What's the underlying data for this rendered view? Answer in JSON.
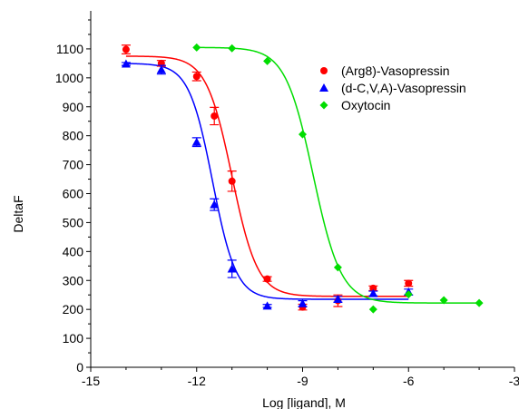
{
  "chart_data": {
    "type": "scatter",
    "title": "",
    "xlabel": "Log [ligand], M",
    "ylabel": "DeltaF",
    "xlim": [
      -15,
      -3
    ],
    "ylim": [
      0,
      1200
    ],
    "xticks": [
      -15,
      -12,
      -9,
      -6,
      -3
    ],
    "xtick_labels": [
      "-15",
      "-12",
      "-9",
      "-6",
      "-3"
    ],
    "yticks": [
      0,
      100,
      200,
      300,
      400,
      500,
      600,
      700,
      800,
      900,
      1000,
      1100
    ],
    "ytick_labels": [
      "0",
      "100",
      "200",
      "300",
      "400",
      "500",
      "600",
      "700",
      "800",
      "900",
      "1000",
      "1100"
    ],
    "grid": false,
    "legend_position": "top-right",
    "series": [
      {
        "name": "(Arg8)-Vasopressin",
        "color": "#ff0000",
        "marker": "circle",
        "points": [
          {
            "x": -14,
            "y": 1098,
            "err": 15
          },
          {
            "x": -13,
            "y": 1050,
            "err": 10
          },
          {
            "x": -12,
            "y": 1005,
            "err": 15
          },
          {
            "x": -11.5,
            "y": 868,
            "err": 30
          },
          {
            "x": -11,
            "y": 643,
            "err": 35
          },
          {
            "x": -10,
            "y": 305,
            "err": 8
          },
          {
            "x": -9,
            "y": 208,
            "err": 10
          },
          {
            "x": -8,
            "y": 230,
            "err": 20
          },
          {
            "x": -7,
            "y": 273,
            "err": 8
          },
          {
            "x": -6,
            "y": 290,
            "err": 10
          }
        ],
        "curve": {
          "top": 1075,
          "bottom": 245,
          "logec50": -11.0,
          "hill": 1.2
        }
      },
      {
        "name": "(d-C,V,A)-Vasopressin",
        "color": "#0000ff",
        "marker": "triangle",
        "points": [
          {
            "x": -14,
            "y": 1048,
            "err": 5
          },
          {
            "x": -13,
            "y": 1028,
            "err": 15
          },
          {
            "x": -12,
            "y": 778,
            "err": 15
          },
          {
            "x": -11.5,
            "y": 562,
            "err": 20
          },
          {
            "x": -11,
            "y": 340,
            "err": 30
          },
          {
            "x": -10,
            "y": 212,
            "err": 5
          },
          {
            "x": -9,
            "y": 220,
            "err": 10
          },
          {
            "x": -8,
            "y": 235,
            "err": 10
          },
          {
            "x": -7,
            "y": 255,
            "err": 8
          },
          {
            "x": -6,
            "y": 260,
            "err": 10
          }
        ],
        "curve": {
          "top": 1050,
          "bottom": 235,
          "logec50": -11.55,
          "hill": 1.3
        }
      },
      {
        "name": "Oxytocin",
        "color": "#00dd00",
        "marker": "diamond",
        "points": [
          {
            "x": -12,
            "y": 1105
          },
          {
            "x": -11,
            "y": 1102
          },
          {
            "x": -10,
            "y": 1058
          },
          {
            "x": -9,
            "y": 805
          },
          {
            "x": -8,
            "y": 345
          },
          {
            "x": -7,
            "y": 200
          },
          {
            "x": -6,
            "y": 252
          },
          {
            "x": -5,
            "y": 232
          },
          {
            "x": -4,
            "y": 222
          }
        ],
        "curve": {
          "top": 1105,
          "bottom": 222,
          "logec50": -8.7,
          "hill": 1.1
        }
      }
    ]
  }
}
